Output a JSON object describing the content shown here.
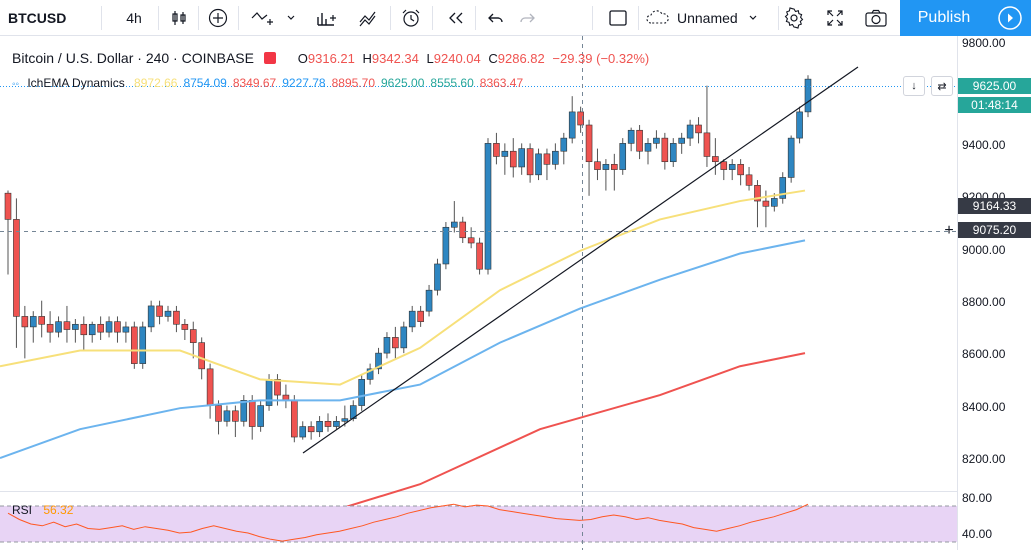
{
  "toolbar": {
    "symbol": "BTCUSD",
    "interval": "4h",
    "layout_name": "Unnamed",
    "publish_label": "Publish"
  },
  "legend": {
    "title": "Bitcoin / U.S. Dollar · 240 · COINBASE",
    "open_label": "O",
    "open": "9316.21",
    "high_label": "H",
    "high": "9342.34",
    "low_label": "L",
    "low": "9240.04",
    "close_label": "C",
    "close": "9286.82",
    "change": "−29.39 (−0.32%)"
  },
  "indicator": {
    "name": "IchEMA Dynamics",
    "values": [
      {
        "v": "8972.66",
        "color": "#f7e07a"
      },
      {
        "v": "8754.09",
        "color": "#2196f3"
      },
      {
        "v": "8349.67",
        "color": "#ef5350"
      },
      {
        "v": "9227.78",
        "color": "#2196f3"
      },
      {
        "v": "8895.70",
        "color": "#ef5350"
      },
      {
        "v": "9625.00",
        "color": "#26a69a"
      },
      {
        "v": "8555.60",
        "color": "#26a69a"
      },
      {
        "v": "8363.47",
        "color": "#ef5350"
      }
    ]
  },
  "rsi": {
    "name": "RSI",
    "value": "56.32"
  },
  "price_axis": {
    "ticks": [
      "9800.00",
      "9400.00",
      "9200.00",
      "9000.00",
      "8800.00",
      "8600.00",
      "8400.00",
      "8200.00"
    ],
    "last_price": "9625.00",
    "countdown": "01:48:14",
    "label_9164": "9164.33",
    "crosshair_price": "9075.20",
    "rsi_ticks": [
      "80.00",
      "40.00"
    ]
  },
  "colors": {
    "up": "#26a69a",
    "down": "#ef5350",
    "candle_up_fill": "#2e86c1",
    "candle_down_fill": "#ef5350",
    "ema_fast": "#f7e07a",
    "ema_mid": "#6cb4ee",
    "ema_slow": "#ef5350",
    "accent": "#2196f3",
    "rsi_line": "#ff5722",
    "rsi_band": "#e8d4f5"
  }
}
